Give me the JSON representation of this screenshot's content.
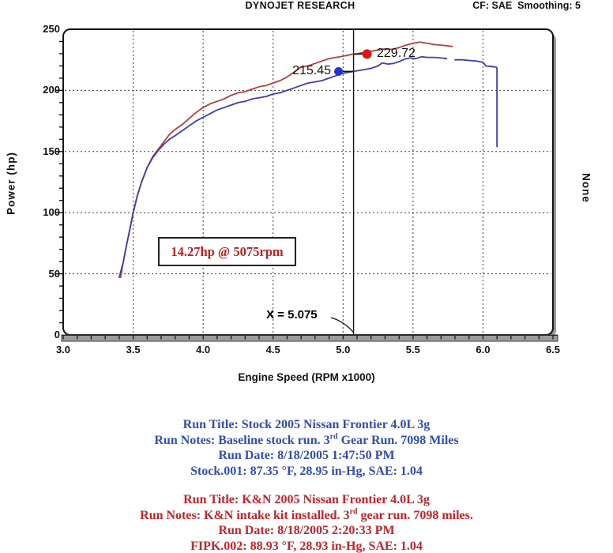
{
  "header": {
    "title": "DYNOJET RESEARCH",
    "cf_label": "CF: SAE  Smoothing: 5"
  },
  "chart_data": {
    "type": "line",
    "xlabel": "Engine Speed (RPM x1000)",
    "ylabel": "Power (hp)",
    "right_label": "None",
    "xlim": [
      3.0,
      6.5
    ],
    "ylim": [
      0,
      250
    ],
    "grid": "dashed, vertical every 0.5 RPMx1000, horizontal every 50 hp",
    "x_minor_tick_step": 0.1,
    "y_minor_tick_step": 10,
    "x_ticks": [
      {
        "value": 3.0,
        "label": "3.0"
      },
      {
        "value": 3.5,
        "label": "3.5"
      },
      {
        "value": 4.0,
        "label": "4.0"
      },
      {
        "value": 4.5,
        "label": "4.5"
      },
      {
        "value": 5.0,
        "label": "5.0"
      },
      {
        "value": 5.5,
        "label": "5.5"
      },
      {
        "value": 6.0,
        "label": "6.0"
      },
      {
        "value": 6.5,
        "label": "6.5"
      }
    ],
    "y_ticks": [
      {
        "value": 0,
        "label": "0"
      },
      {
        "value": 50,
        "label": "50"
      },
      {
        "value": 100,
        "label": "100"
      },
      {
        "value": 150,
        "label": "150"
      },
      {
        "value": 200,
        "label": "200"
      },
      {
        "value": 250,
        "label": "250"
      }
    ],
    "cursor": {
      "x": 5.075,
      "label": "X = 5.075"
    },
    "annotation": {
      "text": "14.27hp @ 5075rpm"
    },
    "series": [
      {
        "name": "K&N run (FIPK.002)",
        "color": "#c03a3a",
        "marker": {
          "x": 5.075,
          "value": 229.72,
          "label": "229.72",
          "dot_color": "#e01414"
        },
        "segments": [
          [
            [
              3.41,
              47
            ],
            [
              3.43,
              60
            ],
            [
              3.45,
              72
            ],
            [
              3.47,
              83
            ],
            [
              3.5,
              100
            ],
            [
              3.53,
              114
            ],
            [
              3.56,
              125
            ],
            [
              3.6,
              137
            ],
            [
              3.64,
              146
            ],
            [
              3.68,
              152
            ],
            [
              3.72,
              158
            ],
            [
              3.76,
              164
            ],
            [
              3.8,
              168
            ],
            [
              3.85,
              172
            ],
            [
              3.9,
              177
            ],
            [
              3.95,
              182
            ],
            [
              4.0,
              186
            ],
            [
              4.05,
              189
            ],
            [
              4.1,
              191
            ],
            [
              4.15,
              193
            ],
            [
              4.2,
              196
            ],
            [
              4.25,
              198
            ],
            [
              4.3,
              199
            ],
            [
              4.35,
              201
            ],
            [
              4.4,
              203
            ],
            [
              4.45,
              204
            ],
            [
              4.5,
              206
            ],
            [
              4.55,
              208
            ],
            [
              4.6,
              211
            ],
            [
              4.65,
              215
            ],
            [
              4.7,
              219
            ],
            [
              4.75,
              220
            ],
            [
              4.8,
              222
            ],
            [
              4.85,
              224
            ],
            [
              4.9,
              226
            ],
            [
              4.95,
              227
            ],
            [
              5.0,
              228
            ],
            [
              5.075,
              229.7
            ],
            [
              5.1,
              230
            ],
            [
              5.15,
              231
            ],
            [
              5.2,
              232
            ],
            [
              5.25,
              233
            ],
            [
              5.3,
              234
            ],
            [
              5.35,
              233.5
            ],
            [
              5.4,
              235
            ],
            [
              5.45,
              237
            ],
            [
              5.5,
              238.5
            ],
            [
              5.55,
              239.5
            ],
            [
              5.6,
              238.5
            ],
            [
              5.65,
              237.5
            ],
            [
              5.7,
              237
            ],
            [
              5.74,
              236.5
            ],
            [
              5.78,
              236
            ]
          ]
        ]
      },
      {
        "name": "Stock run (Stock.001)",
        "color": "#3c3cbe",
        "marker": {
          "x": 5.075,
          "value": 215.45,
          "label": "215.45",
          "dot_color": "#2433d8"
        },
        "segments": [
          [
            [
              3.4,
              47
            ],
            [
              3.43,
              60
            ],
            [
              3.45,
              72
            ],
            [
              3.47,
              83
            ],
            [
              3.5,
              100
            ],
            [
              3.53,
              114
            ],
            [
              3.56,
              125
            ],
            [
              3.6,
              137
            ],
            [
              3.64,
              145
            ],
            [
              3.68,
              151
            ],
            [
              3.72,
              156
            ],
            [
              3.76,
              160
            ],
            [
              3.8,
              163
            ],
            [
              3.85,
              167
            ],
            [
              3.9,
              171
            ],
            [
              3.95,
              175
            ],
            [
              4.0,
              178
            ],
            [
              4.05,
              181
            ],
            [
              4.1,
              184
            ],
            [
              4.15,
              186
            ],
            [
              4.2,
              188
            ],
            [
              4.25,
              190
            ],
            [
              4.3,
              191
            ],
            [
              4.35,
              193
            ],
            [
              4.4,
              194
            ],
            [
              4.45,
              195
            ],
            [
              4.5,
              197
            ],
            [
              4.55,
              198
            ],
            [
              4.6,
              200
            ],
            [
              4.65,
              202
            ],
            [
              4.7,
              204
            ],
            [
              4.75,
              206
            ],
            [
              4.8,
              207
            ],
            [
              4.85,
              208
            ],
            [
              4.9,
              210
            ],
            [
              4.95,
              212
            ],
            [
              5.0,
              214
            ],
            [
              5.075,
              215.5
            ],
            [
              5.1,
              216
            ],
            [
              5.15,
              217
            ],
            [
              5.2,
              218
            ],
            [
              5.25,
              220
            ],
            [
              5.28,
              222.5
            ],
            [
              5.32,
              221.5
            ],
            [
              5.36,
              222
            ],
            [
              5.4,
              223.5
            ],
            [
              5.44,
              225.5
            ],
            [
              5.48,
              226.5
            ],
            [
              5.52,
              226
            ],
            [
              5.56,
              227.5
            ],
            [
              5.6,
              227
            ],
            [
              5.65,
              227
            ],
            [
              5.7,
              226.5
            ],
            [
              5.74,
              226
            ]
          ],
          [
            [
              5.8,
              225
            ],
            [
              5.85,
              225
            ],
            [
              5.9,
              224.5
            ],
            [
              5.95,
              224
            ],
            [
              6.0,
              223
            ],
            [
              6.02,
              220
            ],
            [
              6.06,
              219.5
            ],
            [
              6.095,
              219
            ],
            [
              6.1,
              218
            ],
            [
              6.1,
              154
            ]
          ]
        ]
      }
    ]
  },
  "footer": {
    "stock": {
      "color": "#2d4dc4",
      "lines": [
        {
          "pre": "Run Title: Stock 2005 Nissan Frontier 4.0L 3g",
          "sup": "",
          "post": ""
        },
        {
          "pre": "Run Notes: Baseline stock run. 3",
          "sup": "rd",
          "post": " Gear Run. 7098 Miles"
        },
        {
          "pre": "Run Date: 8/18/2005 1:47:50 PM",
          "sup": "",
          "post": ""
        },
        {
          "pre": "Stock.001: 87.35 °F, 28.95 in-Hg, SAE: 1.04",
          "sup": "",
          "post": ""
        }
      ]
    },
    "kn": {
      "color": "#cc2128",
      "lines": [
        {
          "pre": "Run Title: K&N 2005 Nissan Frontier 4.0L 3g",
          "sup": "",
          "post": ""
        },
        {
          "pre": "Run Notes: K&N intake kit installed. 3",
          "sup": "rd",
          "post": " gear run. 7098 miles."
        },
        {
          "pre": "Run Date: 8/18/2005 2:20:33 PM",
          "sup": "",
          "post": ""
        },
        {
          "pre": "FIPK.002: 88.93 °F, 28.93 in-Hg, SAE: 1.04",
          "sup": "",
          "post": ""
        }
      ]
    }
  }
}
